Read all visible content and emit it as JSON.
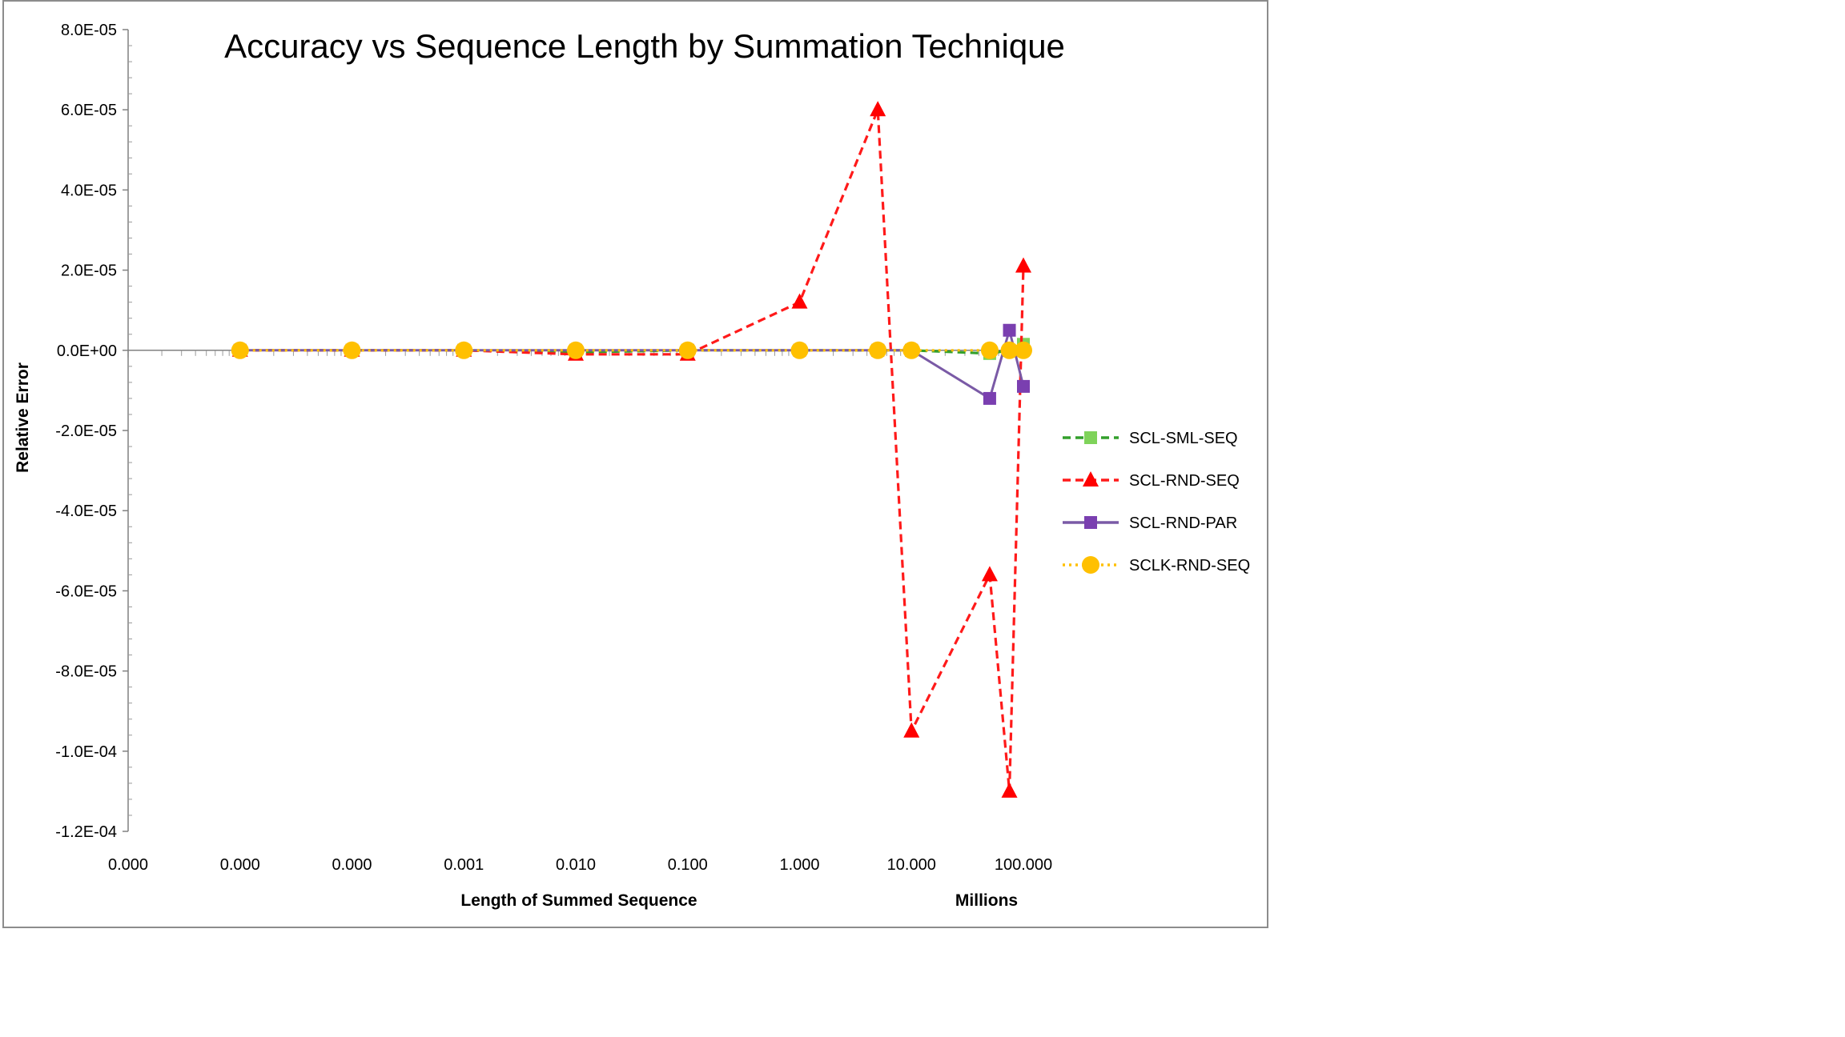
{
  "chart_data": {
    "type": "line",
    "title": "Accuracy vs Sequence Length by Summation Technique",
    "xlabel": "Length of Summed Sequence",
    "x_unit_label": "Millions",
    "ylabel": "Relative Error",
    "x_scale": "log",
    "x_tick_labels": [
      "0.000",
      "0.000",
      "0.000",
      "0.001",
      "0.010",
      "0.100",
      "1.000",
      "10.000",
      "100.000"
    ],
    "x_ticks": [
      1e-06,
      1e-05,
      0.0001,
      0.001,
      0.01,
      0.1,
      1,
      10,
      100
    ],
    "y_tick_labels": [
      "8.0E-05",
      "6.0E-05",
      "4.0E-05",
      "2.0E-05",
      "0.0E+00",
      "-2.0E-05",
      "-4.0E-05",
      "-6.0E-05",
      "-8.0E-05",
      "-1.0E-04",
      "-1.2E-04"
    ],
    "y_ticks": [
      8e-05,
      6e-05,
      4e-05,
      2e-05,
      0,
      -2e-05,
      -4e-05,
      -6e-05,
      -8e-05,
      -0.0001,
      -0.00012
    ],
    "ylim": [
      -0.00012,
      8e-05
    ],
    "xlim": [
      1e-06,
      100
    ],
    "grid": false,
    "legend_position": "right",
    "series": [
      {
        "name": "SCL-SML-SEQ",
        "color": "#33a02c",
        "marker_color": "#7fd35a",
        "marker": "square",
        "line": "dashed",
        "x": [
          1e-05,
          0.0001,
          0.001,
          0.01,
          0.1,
          1,
          5,
          10,
          50,
          75,
          100
        ],
        "y": [
          0,
          0,
          0,
          -5e-07,
          0,
          0,
          0,
          0,
          -8e-07,
          0,
          1.5e-06
        ]
      },
      {
        "name": "SCL-RND-SEQ",
        "color": "#ff1a1a",
        "marker_color": "#ff0000",
        "marker": "triangle",
        "line": "dashed",
        "x": [
          1e-05,
          0.0001,
          0.001,
          0.01,
          0.1,
          1,
          5,
          10,
          50,
          75,
          100
        ],
        "y": [
          0,
          0,
          0,
          -1e-06,
          -1e-06,
          1.2e-05,
          6e-05,
          -9.5e-05,
          -5.6e-05,
          -0.00011,
          2.1e-05
        ]
      },
      {
        "name": "SCL-RND-PAR",
        "color": "#7a5aa6",
        "marker_color": "#7a3fb0",
        "marker": "square",
        "line": "solid",
        "x": [
          1e-05,
          0.0001,
          0.001,
          0.01,
          0.1,
          1,
          5,
          10,
          50,
          75,
          100
        ],
        "y": [
          0,
          0,
          0,
          0,
          0,
          0,
          0,
          0,
          -1.2e-05,
          5e-06,
          -9e-06
        ]
      },
      {
        "name": "SCLK-RND-SEQ",
        "color": "#ffc000",
        "marker_color": "#ffc000",
        "marker": "circle",
        "line": "dotted",
        "x": [
          1e-05,
          0.0001,
          0.001,
          0.01,
          0.1,
          1,
          5,
          10,
          50,
          75,
          100
        ],
        "y": [
          0,
          0,
          0,
          0,
          0,
          0,
          0,
          0,
          0,
          0,
          0
        ]
      }
    ]
  }
}
